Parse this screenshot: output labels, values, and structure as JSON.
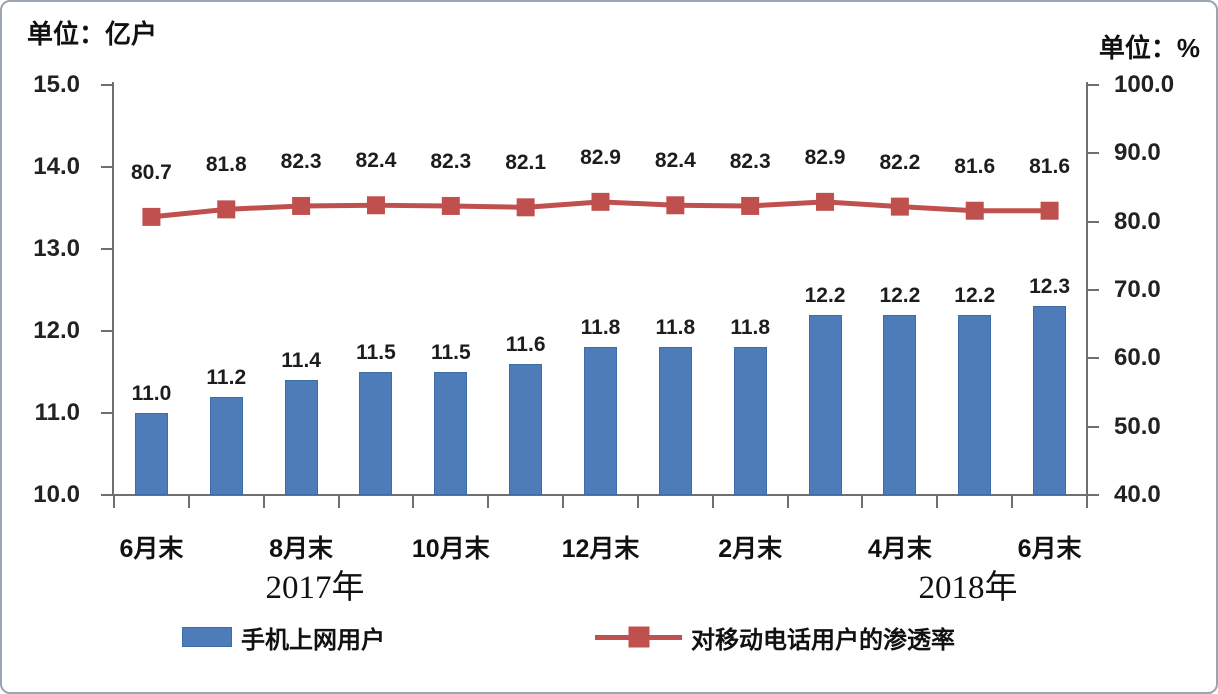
{
  "chart_data": {
    "type": "combo-bar-line",
    "grid": false,
    "legend_position": "bottom",
    "series": [
      {
        "name": "手机上网用户",
        "type": "bar",
        "axis": "left",
        "color": "#4d7cb8",
        "values": [
          11.0,
          11.2,
          11.4,
          11.5,
          11.5,
          11.6,
          11.8,
          11.8,
          11.8,
          12.2,
          12.2,
          12.2,
          12.3
        ]
      },
      {
        "name": "对移动电话用户的渗透率",
        "type": "line",
        "axis": "right",
        "color": "#c0504d",
        "marker": "square",
        "values": [
          80.7,
          81.8,
          82.3,
          82.4,
          82.3,
          82.1,
          82.9,
          82.4,
          82.3,
          82.9,
          82.2,
          81.6,
          81.6
        ]
      }
    ],
    "left_axis": {
      "title": "单位：亿户",
      "min": 10.0,
      "max": 15.0,
      "step": 1.0,
      "ticks": [
        "15.0",
        "14.0",
        "13.0",
        "12.0",
        "11.0",
        "10.0"
      ]
    },
    "right_axis": {
      "title": "单位：%",
      "min": 40.0,
      "max": 100.0,
      "step": 10.0,
      "ticks": [
        "100.0",
        "90.0",
        "80.0",
        "70.0",
        "60.0",
        "50.0",
        "40.0"
      ]
    },
    "x_axis": {
      "tick_labels": [
        "6月末",
        "8月末",
        "10月末",
        "12月末",
        "2月末",
        "4月末",
        "6月末"
      ],
      "label_indices": [
        0,
        2,
        4,
        6,
        8,
        10,
        12
      ],
      "year_labels": [
        "2017年",
        "2018年"
      ]
    }
  }
}
